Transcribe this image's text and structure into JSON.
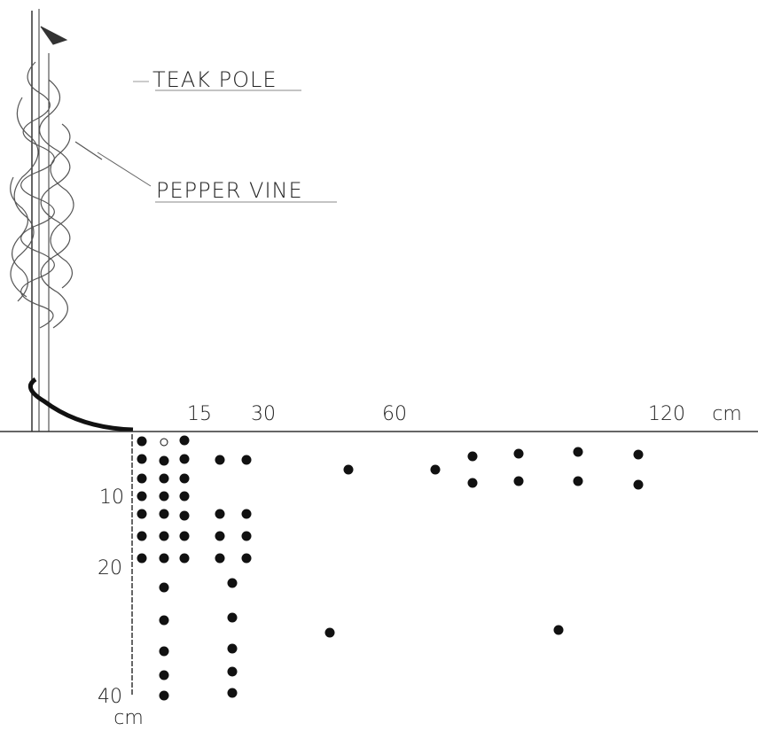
{
  "labels": {
    "teak_pole": "TEAK POLE",
    "pepper_vine": "PEPPER VINE"
  },
  "distance_axis": {
    "ticks": [
      "15",
      "30",
      "60",
      "120"
    ],
    "unit": "cm"
  },
  "depth_axis": {
    "ticks": [
      "10",
      "20",
      "40"
    ],
    "unit": "cm"
  }
}
